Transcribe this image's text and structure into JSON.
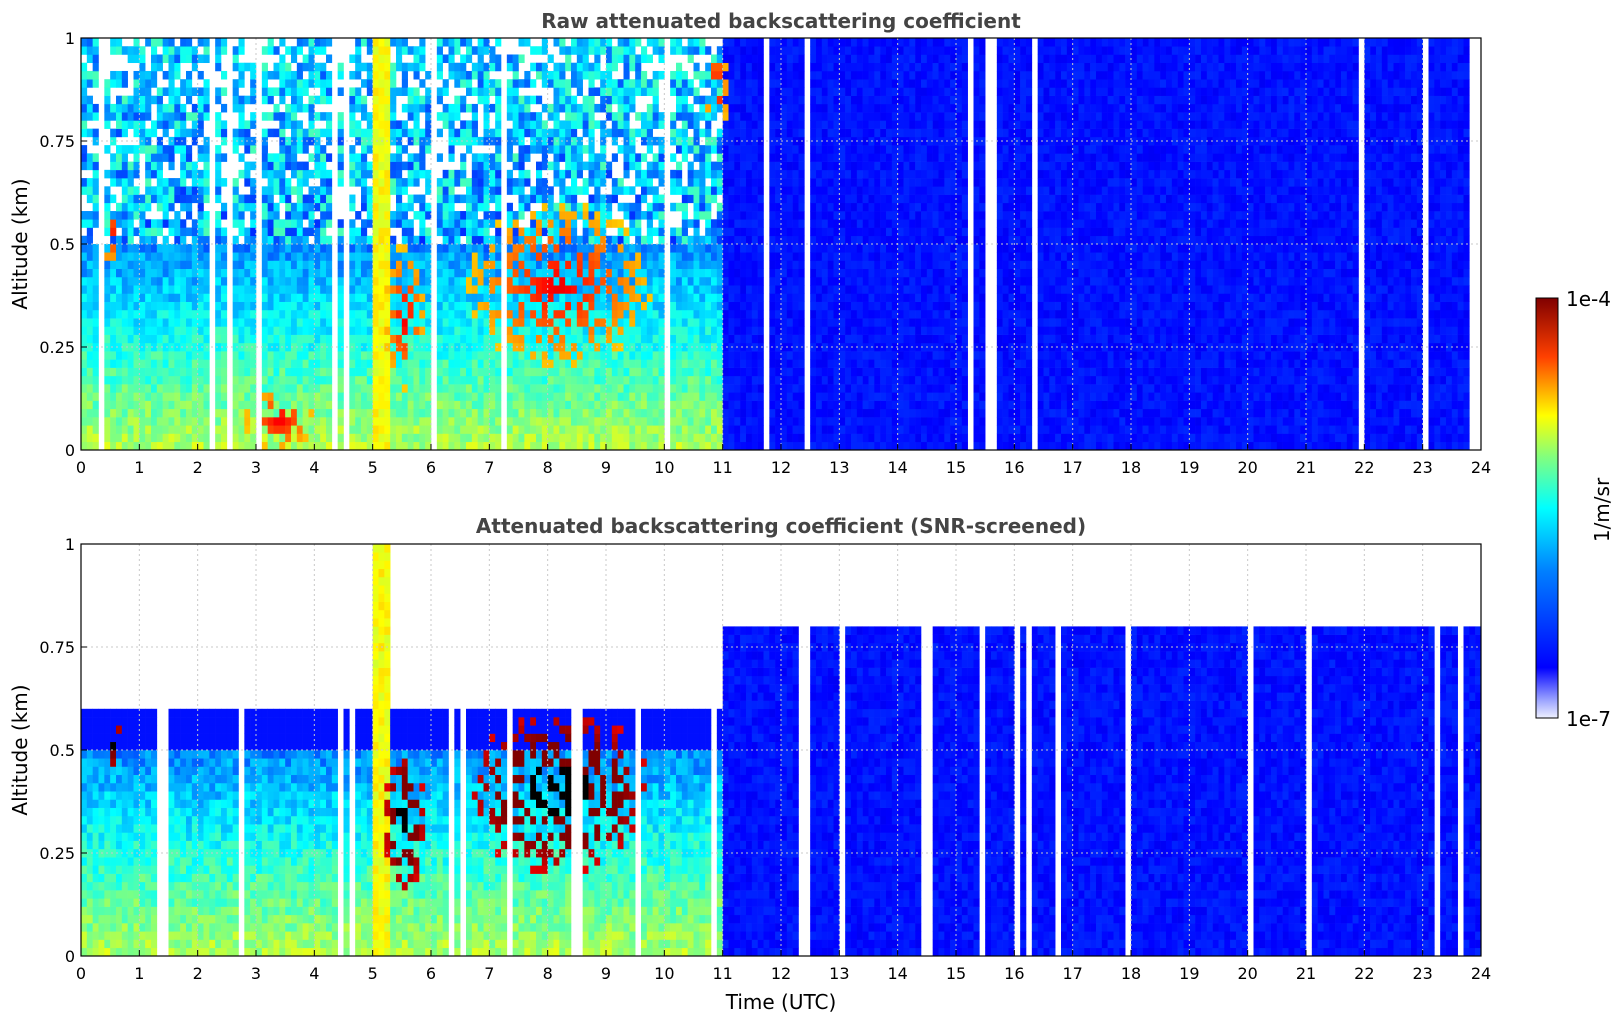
{
  "chart_data": [
    {
      "type": "heatmap",
      "title": "Raw attenuated backscattering coefficient",
      "xlabel": "",
      "ylabel": "Altitude (km)",
      "xlim": [
        0,
        24
      ],
      "ylim": [
        0,
        1
      ],
      "x_ticks": [
        "0",
        "1",
        "2",
        "3",
        "4",
        "5",
        "6",
        "7",
        "8",
        "9",
        "10",
        "11",
        "12",
        "13",
        "14",
        "15",
        "16",
        "17",
        "18",
        "19",
        "20",
        "21",
        "22",
        "23",
        "24"
      ],
      "y_ticks": [
        "0",
        "0.25",
        "0.5",
        "0.75",
        "1"
      ],
      "grid": true,
      "screened": false,
      "features": [
        {
          "kind": "aerosol_layer",
          "time": [
            0,
            11
          ],
          "altitude": [
            0,
            0.5
          ],
          "level": "medium"
        },
        {
          "kind": "cloud",
          "time": [
            0.3,
            0.7
          ],
          "altitude": [
            0.45,
            0.6
          ],
          "level": "high"
        },
        {
          "kind": "cloud",
          "time": [
            2.8,
            4.0
          ],
          "altitude": [
            0,
            0.15
          ],
          "level": "high"
        },
        {
          "kind": "cloud",
          "time": [
            5.2,
            5.9
          ],
          "altitude": [
            0.15,
            0.5
          ],
          "level": "high"
        },
        {
          "kind": "cloud",
          "time": [
            6.6,
            9.8
          ],
          "altitude": [
            0.2,
            0.6
          ],
          "level": "high"
        },
        {
          "kind": "cloud",
          "time": [
            10.7,
            11.1
          ],
          "altitude": [
            0.75,
            1.0
          ],
          "level": "high"
        },
        {
          "kind": "precipitation_streak",
          "time": [
            4.95,
            5.35
          ],
          "altitude": [
            0,
            1.0
          ],
          "level": "high"
        },
        {
          "kind": "clear_boundary_layer",
          "time": [
            11,
            24
          ],
          "altitude": [
            0,
            1.0
          ],
          "level": "low"
        }
      ]
    },
    {
      "type": "heatmap",
      "title": "Attenuated backscattering coefficient (SNR-screened)",
      "xlabel": "Time (UTC)",
      "ylabel": "Altitude (km)",
      "xlim": [
        0,
        24
      ],
      "ylim": [
        0,
        1
      ],
      "x_ticks": [
        "0",
        "1",
        "2",
        "3",
        "4",
        "5",
        "6",
        "7",
        "8",
        "9",
        "10",
        "11",
        "12",
        "13",
        "14",
        "15",
        "16",
        "17",
        "18",
        "19",
        "20",
        "21",
        "22",
        "23",
        "24"
      ],
      "y_ticks": [
        "0",
        "0.25",
        "0.5",
        "0.75",
        "1"
      ],
      "grid": true,
      "screened": true,
      "features": [
        {
          "kind": "aerosol_layer",
          "time": [
            0,
            11
          ],
          "altitude": [
            0,
            0.5
          ],
          "level": "medium"
        },
        {
          "kind": "cloud",
          "time": [
            0.3,
            0.7
          ],
          "altitude": [
            0.45,
            0.6
          ],
          "level": "saturated"
        },
        {
          "kind": "cloud",
          "time": [
            5.2,
            5.9
          ],
          "altitude": [
            0.15,
            0.5
          ],
          "level": "saturated"
        },
        {
          "kind": "cloud",
          "time": [
            6.6,
            9.8
          ],
          "altitude": [
            0.2,
            0.6
          ],
          "level": "saturated"
        },
        {
          "kind": "precipitation_streak",
          "time": [
            4.95,
            5.35
          ],
          "altitude": [
            0,
            1.0
          ],
          "level": "high"
        },
        {
          "kind": "clear_boundary_layer",
          "time": [
            11,
            24
          ],
          "altitude": [
            0,
            0.8
          ],
          "level": "low"
        }
      ]
    }
  ],
  "colorbar": {
    "label": "1/m/sr",
    "max_label": "1e-4",
    "min_label": "1e-7",
    "scale": "log",
    "range": [
      1e-07,
      0.0001
    ],
    "colormap": "jet"
  },
  "colors": {
    "title": "#444444",
    "axis": "#000000",
    "saturated": "#000000",
    "grid": "#c8c8c8"
  }
}
